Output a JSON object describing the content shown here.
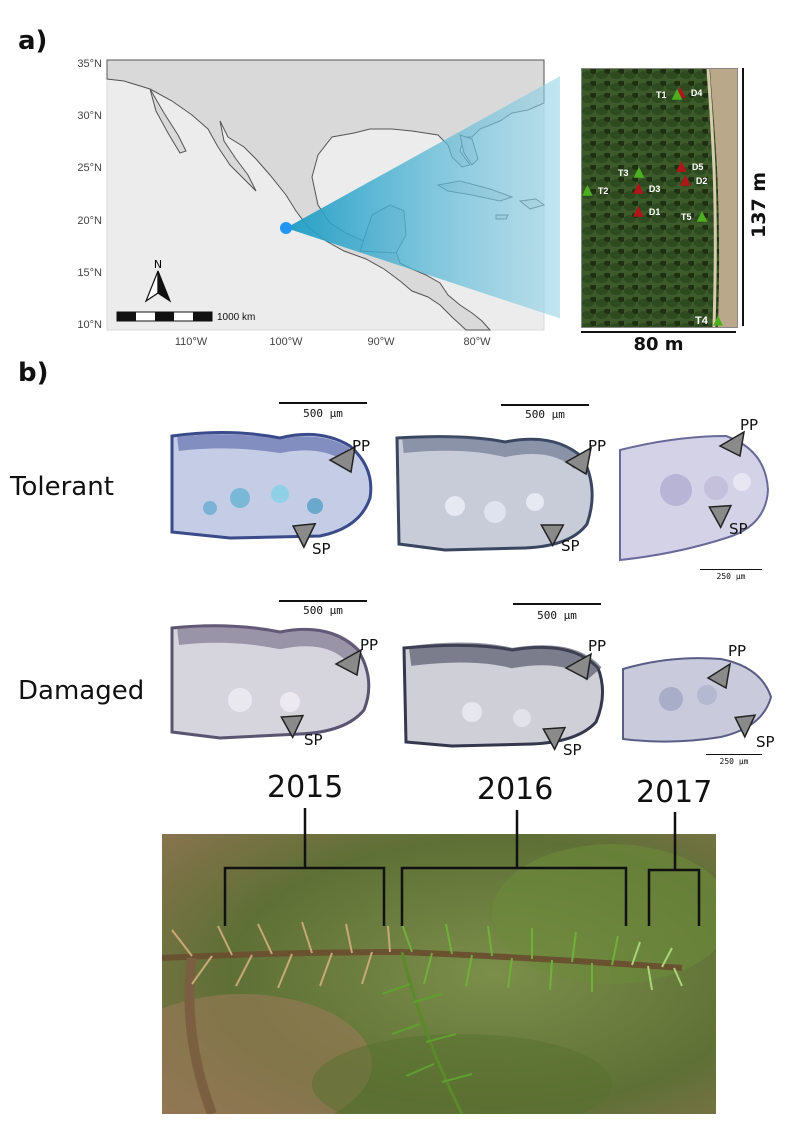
{
  "panel_a": {
    "label": "a)",
    "lat_ticks": [
      "35°N",
      "30°N",
      "25°N",
      "20°N",
      "15°N",
      "10°N"
    ],
    "lon_ticks": [
      "110°W",
      "100°W",
      "90°W",
      "80°W"
    ],
    "north_label": "N",
    "map_scale_label": "1000 km",
    "site_width_label": "80 m",
    "site_height_label": "137 m",
    "trees": [
      {
        "id": "T1",
        "status": "tolerant"
      },
      {
        "id": "T2",
        "status": "tolerant"
      },
      {
        "id": "T3",
        "status": "tolerant"
      },
      {
        "id": "T4",
        "status": "tolerant"
      },
      {
        "id": "T5",
        "status": "tolerant"
      },
      {
        "id": "D1",
        "status": "damaged"
      },
      {
        "id": "D2",
        "status": "damaged"
      },
      {
        "id": "D3",
        "status": "damaged"
      },
      {
        "id": "D4",
        "status": "damaged"
      },
      {
        "id": "D5",
        "status": "damaged"
      }
    ],
    "colors": {
      "tolerant": "#4caf1f",
      "damaged": "#b3141a",
      "site_marker": "#2196f3"
    }
  },
  "panel_b": {
    "label": "b)",
    "rows": [
      {
        "label": "Tolerant"
      },
      {
        "label": "Damaged"
      }
    ],
    "pp_label": "PP",
    "sp_label": "SP",
    "scale_500": "500 µm",
    "scale_250": "250 µm",
    "years": [
      "2015",
      "2016",
      "2017"
    ]
  }
}
